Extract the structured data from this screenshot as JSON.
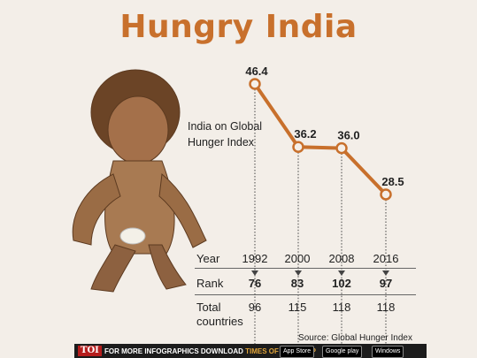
{
  "header": {
    "title": "Hungry India"
  },
  "chart_data": {
    "type": "line",
    "title": "India on Global Hunger Index",
    "categories": [
      "1992",
      "2000",
      "2008",
      "2016"
    ],
    "series": [
      {
        "values": [
          46.4,
          36.2,
          36.0,
          28.5
        ]
      }
    ],
    "data_labels": [
      "46.4",
      "36.2",
      "36.0",
      "28.5"
    ],
    "line_color": "#c8702c",
    "grid": false
  },
  "table": {
    "year_label": "Year",
    "years": [
      "1992",
      "2000",
      "2008",
      "2016"
    ],
    "rank_label": "Rank",
    "ranks": [
      "76",
      "83",
      "102",
      "97"
    ],
    "total_label_line1": "Total",
    "total_label_line2": "countries",
    "totals": [
      "96",
      "115",
      "118",
      "118"
    ]
  },
  "source": "Source: Global Hunger Index",
  "footer": {
    "logo": "TOI",
    "text_prefix": "FOR MORE  INFOGRAPHICS DOWNLOAD",
    "brand": "TIMES OF INDIA  APP",
    "app_store": "App Store",
    "google_play": "Google play",
    "windows": "Windows"
  }
}
